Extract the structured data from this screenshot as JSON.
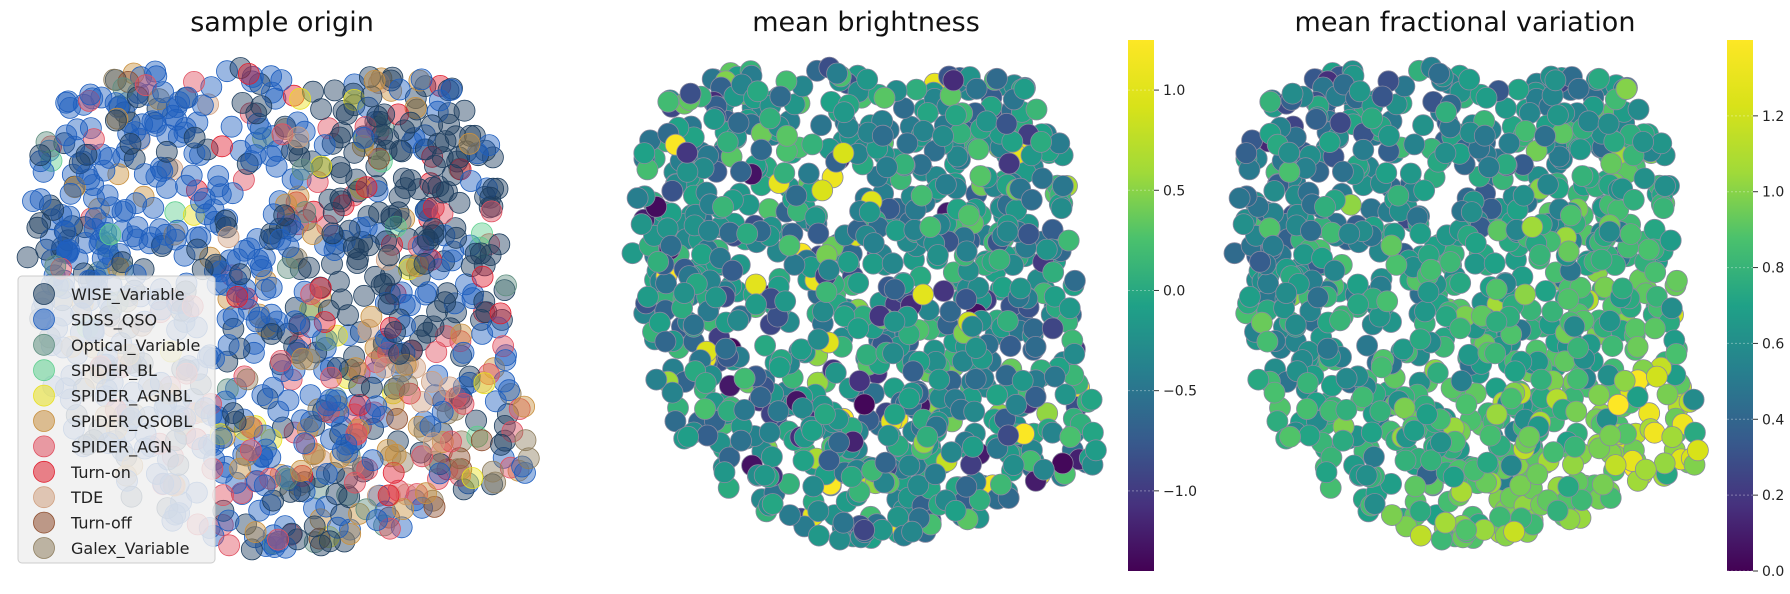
{
  "chart_data": [
    {
      "type": "scatter",
      "title": "sample origin",
      "encoding": "categorical",
      "legend_position": "lower-left",
      "marker_alpha": 0.45,
      "series": [
        {
          "name": "WISE_Variable",
          "color": "#1f3f5f",
          "approx_count": 260,
          "region": "whole cloud, densest upper-right"
        },
        {
          "name": "SDSS_QSO",
          "color": "#1f5fbf",
          "approx_count": 420,
          "region": "whole cloud, densest left and upper"
        },
        {
          "name": "Optical_Variable",
          "color": "#5f8f80",
          "approx_count": 30,
          "region": "scattered, right side"
        },
        {
          "name": "SPIDER_BL",
          "color": "#5fcf8f",
          "approx_count": 8,
          "region": "scattered"
        },
        {
          "name": "SPIDER_AGNBL",
          "color": "#e8e020",
          "approx_count": 25,
          "region": "scattered, lower half"
        },
        {
          "name": "SPIDER_QSOBL",
          "color": "#c8903f",
          "approx_count": 60,
          "region": "upper-middle and lower-left"
        },
        {
          "name": "SPIDER_AGN",
          "color": "#e05060",
          "approx_count": 60,
          "region": "lower half and left"
        },
        {
          "name": "Turn-on",
          "color": "#e02030",
          "approx_count": 40,
          "region": "middle band, right"
        },
        {
          "name": "TDE",
          "color": "#d0a080",
          "approx_count": 25,
          "region": "lower-right lobe"
        },
        {
          "name": "Turn-off",
          "color": "#8f4f30",
          "approx_count": 15,
          "region": "lower-right"
        },
        {
          "name": "Galex_Variable",
          "color": "#8f7f60",
          "approx_count": 40,
          "region": "upper-middle and lower-right lobe"
        }
      ]
    },
    {
      "type": "scatter",
      "title": "mean brightness",
      "encoding": "continuous color",
      "colormap": "viridis",
      "colorbar": {
        "min": -1.4,
        "max": 1.25,
        "ticks": [
          1.0,
          0.5,
          0.0,
          -0.5,
          -1.0
        ],
        "tick_labels": [
          "1.0",
          "0.5",
          "0.0",
          "−0.5",
          "−1.0"
        ]
      },
      "value_distribution": {
        "typical_range": [
          -0.7,
          0.3
        ],
        "outliers_high": [
          0.8,
          1.25
        ],
        "outliers_low": [
          -1.4,
          -1.0
        ]
      }
    },
    {
      "type": "scatter",
      "title": "mean fractional variation",
      "encoding": "continuous color",
      "colormap": "viridis",
      "colorbar": {
        "min": 0.0,
        "max": 1.4,
        "ticks": [
          1.2,
          1.0,
          0.8,
          0.6,
          0.4,
          0.2,
          0.0
        ],
        "tick_labels": [
          "1.2",
          "1.0",
          "0.8",
          "0.6",
          "0.4",
          "0.2",
          "0.0"
        ]
      },
      "value_distribution": {
        "trend": "low values (~0.4-0.6) on the upper-left, rising toward the lower-right lobe (~1.0-1.4)"
      }
    }
  ]
}
